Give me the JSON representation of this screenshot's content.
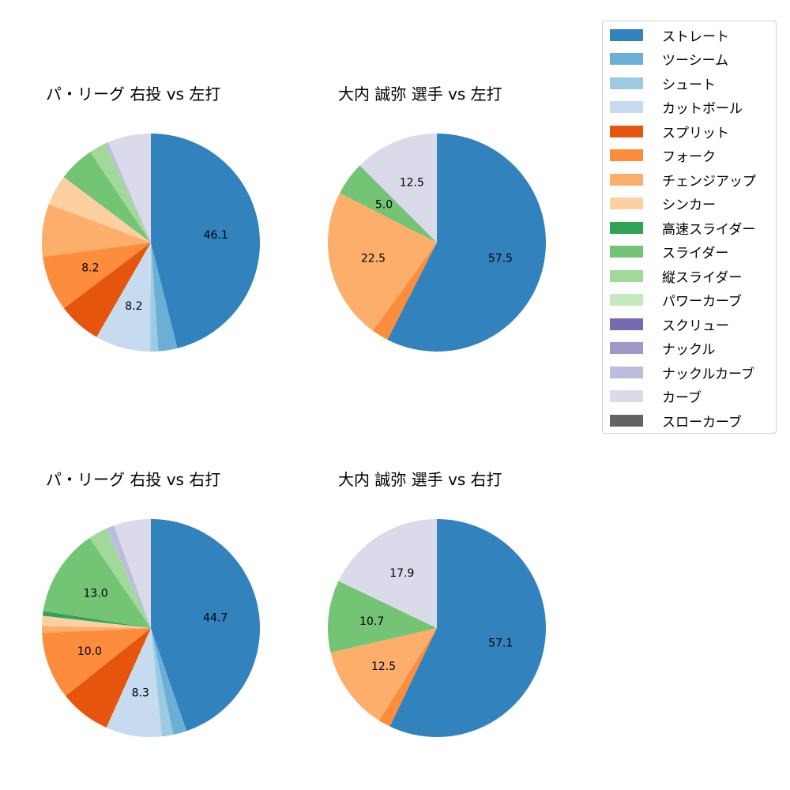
{
  "chart_data": [
    {
      "type": "pie",
      "title": "パ・リーグ 右投 vs 左打",
      "start_angle": 90,
      "direction": "clockwise",
      "categories": [
        "ストレート",
        "ツーシーム",
        "シュート",
        "カットボール",
        "スプリット",
        "フォーク",
        "チェンジアップ",
        "シンカー",
        "高速スライダー",
        "スライダー",
        "縦スライダー",
        "ナックルカーブ",
        "カーブ"
      ],
      "values": [
        46.1,
        2.8,
        1.2,
        8.2,
        6.4,
        8.2,
        7.8,
        4.6,
        0.1,
        5.2,
        2.5,
        0.5,
        6.4
      ],
      "labels_shown": {
        "ストレート": "46.1",
        "カットボール": "8.2",
        "フォーク": "8.2"
      }
    },
    {
      "type": "pie",
      "title": "大内 誠弥 選手 vs 左打",
      "start_angle": 90,
      "direction": "clockwise",
      "categories": [
        "ストレート",
        "フォーク",
        "チェンジアップ",
        "スライダー",
        "カーブ"
      ],
      "values": [
        57.5,
        2.5,
        22.5,
        5.0,
        12.5
      ],
      "labels_shown": {
        "ストレート": "57.5",
        "チェンジアップ": "22.5",
        "スライダー": "5.0",
        "カーブ": "12.5"
      }
    },
    {
      "type": "pie",
      "title": "パ・リーグ 右投 vs 右打",
      "start_angle": 90,
      "direction": "clockwise",
      "categories": [
        "ストレート",
        "ツーシーム",
        "シュート",
        "カットボール",
        "スプリット",
        "フォーク",
        "チェンジアップ",
        "シンカー",
        "高速スライダー",
        "スライダー",
        "縦スライダー",
        "ナックルカーブ",
        "カーブ"
      ],
      "values": [
        44.7,
        2.0,
        1.7,
        8.3,
        7.6,
        10.0,
        1.0,
        1.5,
        0.7,
        13.0,
        2.8,
        1.2,
        5.5
      ],
      "labels_shown": {
        "ストレート": "44.7",
        "カットボール": "8.3",
        "フォーク": "10.0",
        "スライダー": "13.0"
      }
    },
    {
      "type": "pie",
      "title": "大内 誠弥 選手 vs 右打",
      "start_angle": 90,
      "direction": "clockwise",
      "categories": [
        "ストレート",
        "フォーク",
        "チェンジアップ",
        "スライダー",
        "カーブ"
      ],
      "values": [
        57.1,
        1.8,
        12.5,
        10.7,
        17.9
      ],
      "labels_shown": {
        "ストレート": "57.1",
        "チェンジアップ": "12.5",
        "スライダー": "10.7",
        "カーブ": "17.9"
      }
    }
  ],
  "legend": {
    "items": [
      {
        "label": "ストレート",
        "color": "#3182bd"
      },
      {
        "label": "ツーシーム",
        "color": "#6baed6"
      },
      {
        "label": "シュート",
        "color": "#9ecae1"
      },
      {
        "label": "カットボール",
        "color": "#c6dbef"
      },
      {
        "label": "スプリット",
        "color": "#e6550d"
      },
      {
        "label": "フォーク",
        "color": "#fd8d3c"
      },
      {
        "label": "チェンジアップ",
        "color": "#fdae6b"
      },
      {
        "label": "シンカー",
        "color": "#fdd0a2"
      },
      {
        "label": "高速スライダー",
        "color": "#31a354"
      },
      {
        "label": "スライダー",
        "color": "#74c476"
      },
      {
        "label": "縦スライダー",
        "color": "#a1d99b"
      },
      {
        "label": "パワーカーブ",
        "color": "#c7e9c0"
      },
      {
        "label": "スクリュー",
        "color": "#756bb1"
      },
      {
        "label": "ナックル",
        "color": "#9e9ac8"
      },
      {
        "label": "ナックルカーブ",
        "color": "#bcbddc"
      },
      {
        "label": "カーブ",
        "color": "#dadaeb"
      },
      {
        "label": "スローカーブ",
        "color": "#636363"
      }
    ]
  },
  "panels": [
    {
      "title": "パ・リーグ 右投 vs 左打"
    },
    {
      "title": "大内 誠弥 選手 vs 左打"
    },
    {
      "title": "パ・リーグ 右投 vs 右打"
    },
    {
      "title": "大内 誠弥 選手 vs 右打"
    }
  ]
}
